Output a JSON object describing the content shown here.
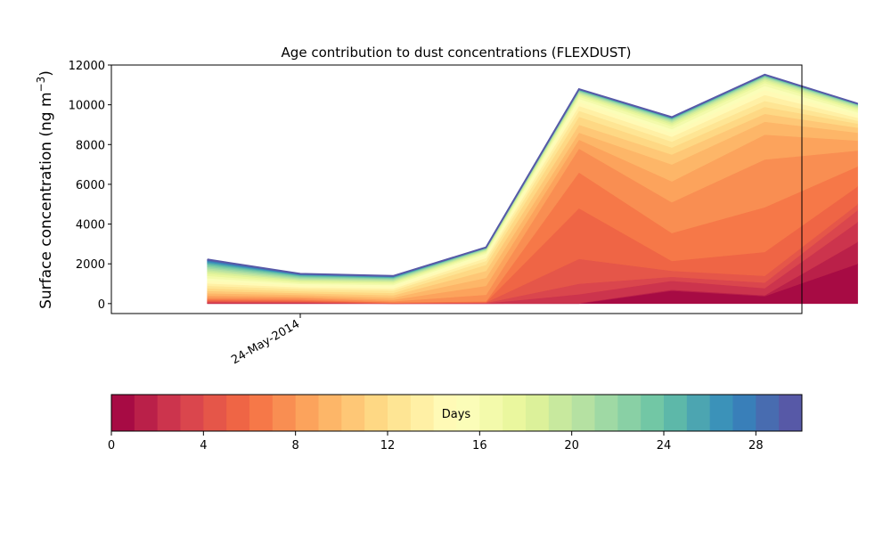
{
  "chart_data": {
    "type": "area",
    "stacked": true,
    "title": "Age contribution to dust concentrations (FLEXDUST)",
    "ylabel": "Surface concentration (ng m",
    "ylabel_superscript": "−3",
    "ylabel_close": ")",
    "ylim": [
      -500,
      12000
    ],
    "yticks": [
      0,
      2000,
      4000,
      6000,
      8000,
      10000,
      12000
    ],
    "ytick_labels": [
      "0",
      "2000",
      "4000",
      "6000",
      "8000",
      "10000",
      "12000"
    ],
    "x_date_labels": [
      "24-May-2014"
    ],
    "x_range": [
      -3.1,
      19.2
    ],
    "x": [
      0,
      3,
      6,
      9,
      12,
      15,
      18,
      21
    ],
    "grid": false,
    "colorbar": {
      "label": "Days",
      "range": [
        0,
        30
      ],
      "ticks": [
        0,
        4,
        8,
        12,
        16,
        20,
        24,
        28
      ],
      "tick_labels": [
        "0",
        "4",
        "8",
        "12",
        "16",
        "20",
        "24",
        "28"
      ],
      "colormap": "Spectral",
      "bands": 30
    },
    "cumulative_levels": [
      {
        "day": 0,
        "values": [
          0,
          0,
          0,
          0,
          0,
          650,
          380,
          2000
        ]
      },
      {
        "day": 1,
        "values": [
          20,
          20,
          0,
          0,
          30,
          700,
          420,
          3100
        ]
      },
      {
        "day": 2,
        "values": [
          40,
          50,
          0,
          20,
          470,
          1150,
          780,
          4100
        ]
      },
      {
        "day": 3,
        "values": [
          90,
          70,
          0,
          40,
          1000,
          1350,
          1060,
          4700
        ]
      },
      {
        "day": 4,
        "values": [
          130,
          100,
          20,
          60,
          2250,
          1650,
          1400,
          5000
        ]
      },
      {
        "day": 5,
        "values": [
          180,
          150,
          40,
          80,
          4800,
          2150,
          2600,
          5900
        ]
      },
      {
        "day": 6,
        "values": [
          230,
          200,
          60,
          120,
          6600,
          3550,
          4850,
          6900
        ]
      },
      {
        "day": 7,
        "values": [
          310,
          280,
          120,
          450,
          7800,
          5100,
          7250,
          7700
        ]
      },
      {
        "day": 8,
        "values": [
          410,
          350,
          200,
          900,
          8250,
          6150,
          8500,
          8200
        ]
      },
      {
        "day": 9,
        "values": [
          520,
          440,
          300,
          1300,
          8600,
          7000,
          9150,
          8600
        ]
      },
      {
        "day": 10,
        "values": [
          640,
          530,
          420,
          1650,
          9000,
          7500,
          9550,
          8850
        ]
      },
      {
        "day": 11,
        "values": [
          770,
          630,
          540,
          1950,
          9400,
          7850,
          9900,
          9050
        ]
      },
      {
        "day": 12,
        "values": [
          900,
          730,
          660,
          2150,
          9700,
          8150,
          10200,
          9200
        ]
      },
      {
        "day": 13,
        "values": [
          1020,
          820,
          760,
          2300,
          9950,
          8400,
          10500,
          9350
        ]
      },
      {
        "day": 14,
        "values": [
          1150,
          910,
          860,
          2420,
          10150,
          8600,
          10750,
          9500
        ]
      },
      {
        "day": 15,
        "values": [
          1280,
          990,
          940,
          2520,
          10300,
          8780,
          10950,
          9620
        ]
      },
      {
        "day": 16,
        "values": [
          1400,
          1060,
          1010,
          2590,
          10420,
          8920,
          11100,
          9720
        ]
      },
      {
        "day": 17,
        "values": [
          1510,
          1120,
          1070,
          2640,
          10500,
          9020,
          11200,
          9800
        ]
      },
      {
        "day": 18,
        "values": [
          1610,
          1180,
          1120,
          2680,
          10560,
          9100,
          11280,
          9860
        ]
      },
      {
        "day": 19,
        "values": [
          1700,
          1230,
          1170,
          2710,
          10610,
          9160,
          11340,
          9910
        ]
      },
      {
        "day": 20,
        "values": [
          1780,
          1280,
          1210,
          2740,
          10650,
          9210,
          11380,
          9950
        ]
      },
      {
        "day": 21,
        "values": [
          1850,
          1320,
          1250,
          2760,
          10680,
          9250,
          11410,
          9980
        ]
      },
      {
        "day": 22,
        "values": [
          1920,
          1360,
          1280,
          2780,
          10710,
          9280,
          11440,
          10000
        ]
      },
      {
        "day": 23,
        "values": [
          1980,
          1390,
          1300,
          2790,
          10730,
          9300,
          11460,
          10020
        ]
      },
      {
        "day": 24,
        "values": [
          2030,
          1420,
          1320,
          2800,
          10750,
          9320,
          11480,
          10030
        ]
      },
      {
        "day": 25,
        "values": [
          2080,
          1440,
          1340,
          2810,
          10760,
          9340,
          11490,
          10040
        ]
      },
      {
        "day": 26,
        "values": [
          2120,
          1460,
          1360,
          2815,
          10770,
          9350,
          11500,
          10045
        ]
      },
      {
        "day": 27,
        "values": [
          2160,
          1480,
          1370,
          2820,
          10780,
          9360,
          11505,
          10050
        ]
      },
      {
        "day": 28,
        "values": [
          2190,
          1490,
          1380,
          2825,
          10785,
          9370,
          11510,
          10055
        ]
      },
      {
        "day": 29,
        "values": [
          2220,
          1500,
          1390,
          2830,
          10790,
          9380,
          11515,
          10060
        ]
      }
    ]
  }
}
